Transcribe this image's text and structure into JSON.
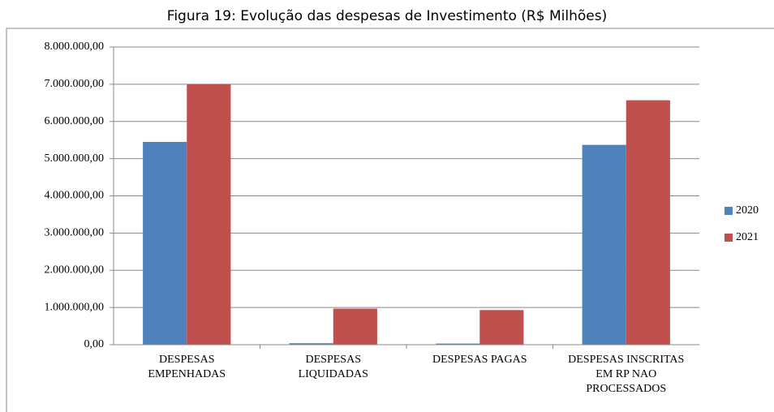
{
  "chart_data": {
    "type": "bar",
    "title": "Figura 19: Evolução das despesas de Investimento (R$ Milhões)",
    "categories": [
      "DESPESAS\nEMPENHADAS",
      "DESPESAS\nLIQUIDADAS",
      "DESPESAS PAGAS",
      "DESPESAS INSCRITAS\nEM RP NAO\nPROCESSADOS"
    ],
    "series": [
      {
        "name": "2020",
        "color": "#4f81bd",
        "values": [
          5450000,
          40000,
          30000,
          5370000
        ]
      },
      {
        "name": "2021",
        "color": "#c0504d",
        "values": [
          7000000,
          970000,
          930000,
          6570000
        ]
      }
    ],
    "ylim": [
      0,
      8000000
    ],
    "yticks": [
      {
        "value": 0,
        "label": "0,00"
      },
      {
        "value": 1000000,
        "label": "1.000.000,00"
      },
      {
        "value": 2000000,
        "label": "2.000.000,00"
      },
      {
        "value": 3000000,
        "label": "3.000.000,00"
      },
      {
        "value": 4000000,
        "label": "4.000.000,00"
      },
      {
        "value": 5000000,
        "label": "5.000.000,00"
      },
      {
        "value": 6000000,
        "label": "6.000.000,00"
      },
      {
        "value": 7000000,
        "label": "7.000.000,00"
      },
      {
        "value": 8000000,
        "label": "8.000.000,00"
      }
    ],
    "grid": true,
    "legend": "right"
  }
}
